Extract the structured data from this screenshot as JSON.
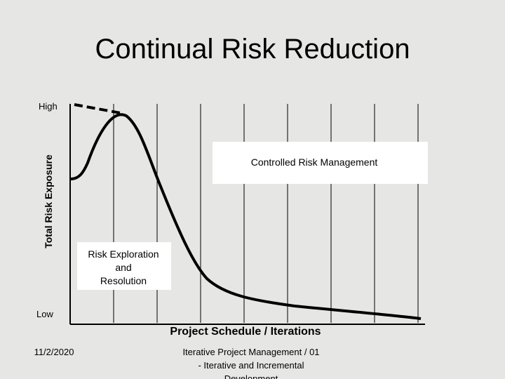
{
  "title": "Continual Risk Reduction",
  "y_axis": {
    "label": "Total Risk Exposure",
    "high": "High",
    "low": "Low"
  },
  "x_axis": {
    "label": "Project Schedule / Iterations"
  },
  "regions": {
    "controlled": "Controlled Risk Management",
    "exploration": [
      "Risk Exploration",
      "and",
      "Resolution"
    ]
  },
  "footer": {
    "date": "11/2/2020",
    "text": [
      "Iterative Project Management / 01",
      "- Iterative and Incremental",
      "Development"
    ]
  }
}
